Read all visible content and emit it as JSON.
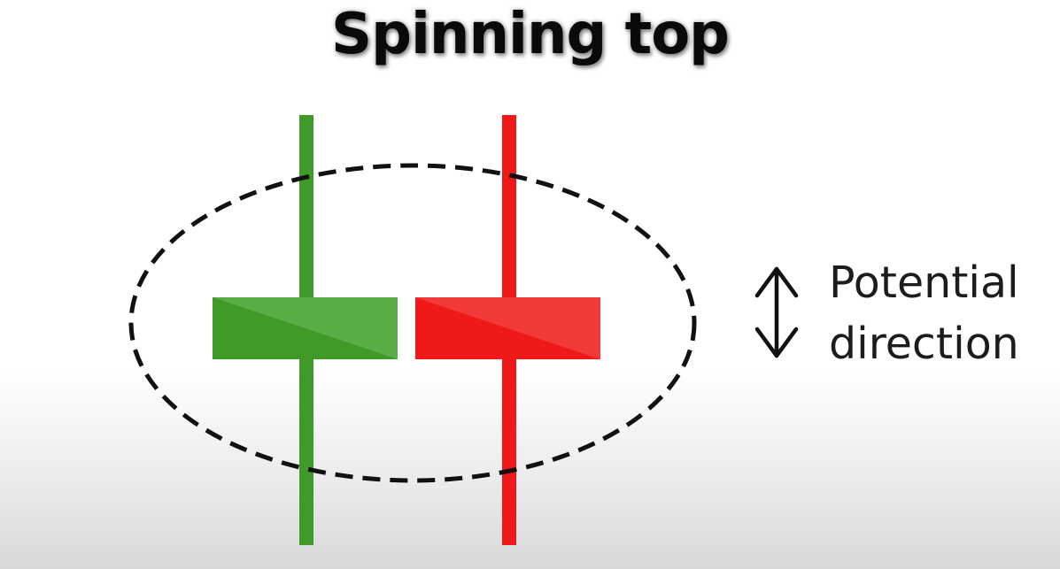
{
  "title": "Spinning top",
  "label_line1": "Potential",
  "label_line2": "direction",
  "colors": {
    "bullish": "#3f9a28",
    "bullish_light": "#5aad44",
    "bearish": "#f0191a",
    "bearish_light": "#f23a3b",
    "outline": "#111111"
  },
  "icons": [
    "double-arrow-icon"
  ]
}
